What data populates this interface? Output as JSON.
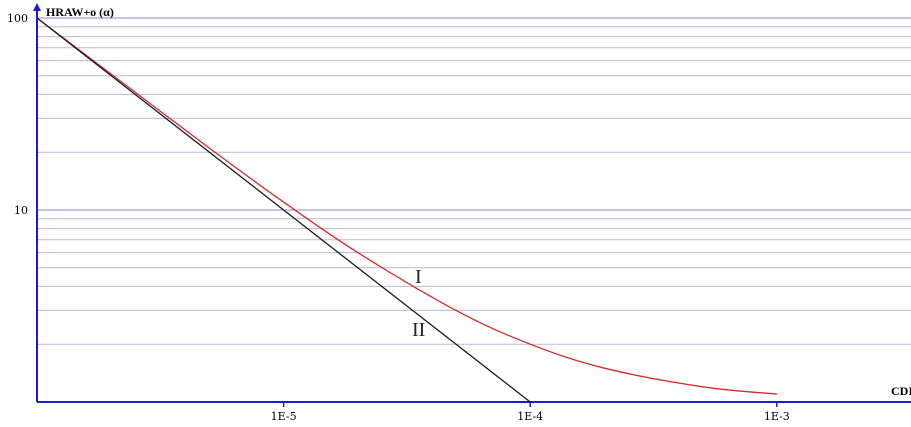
{
  "chart_data": {
    "type": "line",
    "ylabel": "HRAW+o (α)",
    "xlabel": "CDI",
    "x_scale": "log",
    "y_scale": "log",
    "xlim": [
      1e-06,
      0.0035
    ],
    "ylim": [
      1,
      100
    ],
    "x_ticks": [
      {
        "value": 1e-05,
        "label": "1E-5"
      },
      {
        "value": 0.0001,
        "label": "1E-4"
      },
      {
        "value": 0.001,
        "label": "1E-3"
      }
    ],
    "y_ticks": [
      {
        "value": 100,
        "label": "100"
      },
      {
        "value": 10,
        "label": "10"
      }
    ],
    "grid": true,
    "colors": {
      "axis": "#1a1ad9",
      "grid": "#b8b8d8",
      "series_1": "#d42a2a",
      "series_2": "#1a1a1a"
    },
    "series": [
      {
        "name": "I",
        "x": [
          1e-06,
          2e-06,
          5e-06,
          1e-05,
          2e-05,
          5e-05,
          0.0001,
          0.0002,
          0.0005,
          0.001
        ],
        "y": [
          100,
          51,
          21,
          11,
          6.0,
          3.0,
          2.0,
          1.5,
          1.2,
          1.1
        ]
      },
      {
        "name": "II",
        "x": [
          1e-06,
          1e-05,
          0.0001
        ],
        "y": [
          100,
          10,
          1
        ]
      }
    ]
  }
}
